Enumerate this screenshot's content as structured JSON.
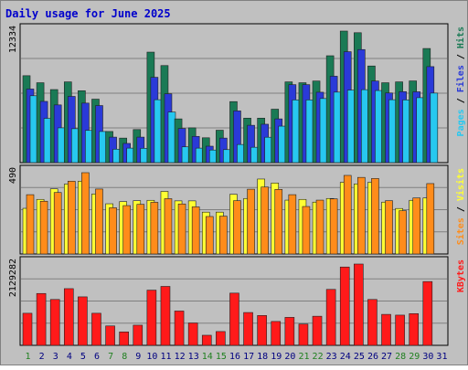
{
  "title": "Daily usage for June 2025",
  "colors": {
    "background": "#c0c0c0",
    "border": "#808080",
    "title": "#0000cc",
    "hits": "#1a7a55",
    "files": "#2a3ad8",
    "pages": "#27c8f0",
    "visits": "#ffff33",
    "sites": "#ff8c1a",
    "kbytes": "#ff1a1a",
    "day_weekday": "#000080",
    "day_weekend": "#208020"
  },
  "chart_data": [
    {
      "type": "bar",
      "panel": "hits-files-pages",
      "ymax_label": "12334",
      "legend": [
        {
          "name": "Pages",
          "color": "#27c8f0"
        },
        {
          "name": "Files",
          "color": "#2a3ad8"
        },
        {
          "name": "Hits",
          "color": "#1a7a55"
        }
      ],
      "categories": [
        "1",
        "2",
        "3",
        "4",
        "5",
        "6",
        "7",
        "8",
        "9",
        "10",
        "11",
        "12",
        "13",
        "14",
        "15",
        "16",
        "17",
        "18",
        "19",
        "20",
        "21",
        "22",
        "23",
        "24",
        "25",
        "26",
        "27",
        "28",
        "29",
        "30",
        "31"
      ],
      "series": [
        {
          "name": "Hits",
          "values": [
            8150,
            7490,
            6850,
            7570,
            6740,
            5950,
            2920,
            2300,
            3100,
            10360,
            9100,
            4100,
            3260,
            2330,
            3040,
            5720,
            4170,
            4170,
            5010,
            7570,
            7490,
            7650,
            10020,
            12334,
            12180,
            9060,
            7490,
            7570,
            7660,
            10700,
            null
          ]
        },
        {
          "name": "Files",
          "values": [
            6900,
            5740,
            5410,
            6210,
            5580,
            5350,
            2390,
            1800,
            2390,
            8000,
            6450,
            3200,
            2460,
            1540,
            2300,
            4850,
            3500,
            3600,
            4100,
            7310,
            7310,
            6600,
            8100,
            10400,
            10600,
            7650,
            6530,
            6650,
            6640,
            9000,
            null
          ]
        },
        {
          "name": "Pages",
          "values": [
            6270,
            4150,
            3260,
            3180,
            3020,
            2920,
            1260,
            1360,
            1340,
            5900,
            4740,
            1480,
            1360,
            1180,
            1220,
            1700,
            1440,
            2380,
            3420,
            5880,
            5880,
            6010,
            6610,
            6800,
            6840,
            6760,
            5900,
            5880,
            6090,
            6520,
            null
          ]
        }
      ]
    },
    {
      "type": "bar",
      "panel": "visits-sites",
      "ymax_label": "490",
      "legend": [
        {
          "name": "Sites",
          "color": "#ff8c1a"
        },
        {
          "name": "Visits",
          "color": "#ffff33"
        }
      ],
      "categories": [
        "1",
        "2",
        "3",
        "4",
        "5",
        "6",
        "7",
        "8",
        "9",
        "10",
        "11",
        "12",
        "13",
        "14",
        "15",
        "16",
        "17",
        "18",
        "19",
        "20",
        "21",
        "22",
        "23",
        "24",
        "25",
        "26",
        "27",
        "28",
        "29",
        "30",
        "31"
      ],
      "series": [
        {
          "name": "Visits",
          "values": [
            251,
            300,
            358,
            384,
            400,
            330,
            276,
            288,
            293,
            295,
            344,
            292,
            292,
            230,
            230,
            328,
            305,
            412,
            390,
            296,
            300,
            285,
            305,
            394,
            385,
            394,
            285,
            250,
            295,
            308,
            null
          ]
        },
        {
          "name": "Sites",
          "values": [
            326,
            290,
            338,
            400,
            447,
            357,
            254,
            266,
            273,
            284,
            304,
            275,
            259,
            206,
            208,
            293,
            356,
            368,
            355,
            326,
            261,
            296,
            303,
            432,
            421,
            415,
            293,
            238,
            308,
            387,
            null
          ]
        }
      ]
    },
    {
      "type": "bar",
      "panel": "kbytes",
      "ymax_label": "2129282",
      "legend": [
        {
          "name": "KBytes",
          "color": "#ff1a1a"
        }
      ],
      "categories": [
        "1",
        "2",
        "3",
        "4",
        "5",
        "6",
        "7",
        "8",
        "9",
        "10",
        "11",
        "12",
        "13",
        "14",
        "15",
        "16",
        "17",
        "18",
        "19",
        "20",
        "21",
        "22",
        "23",
        "24",
        "25",
        "26",
        "27",
        "28",
        "29",
        "30",
        "31"
      ],
      "series": [
        {
          "name": "KBytes",
          "values": [
            860000,
            1390000,
            1230000,
            1520000,
            1300000,
            860000,
            520000,
            360000,
            540000,
            1480000,
            1580000,
            920000,
            600000,
            270000,
            370000,
            1400000,
            880000,
            800000,
            640000,
            750000,
            570000,
            780000,
            1500000,
            2100000,
            2180000,
            1230000,
            830000,
            810000,
            850000,
            1710000,
            null
          ]
        }
      ]
    }
  ],
  "day_labels": [
    {
      "text": "1",
      "weekend": true
    },
    {
      "text": "2",
      "weekend": false
    },
    {
      "text": "3",
      "weekend": false
    },
    {
      "text": "4",
      "weekend": false
    },
    {
      "text": "5",
      "weekend": false
    },
    {
      "text": "6",
      "weekend": false
    },
    {
      "text": "7",
      "weekend": true
    },
    {
      "text": "8",
      "weekend": true
    },
    {
      "text": "9",
      "weekend": false
    },
    {
      "text": "10",
      "weekend": false
    },
    {
      "text": "11",
      "weekend": false
    },
    {
      "text": "12",
      "weekend": false
    },
    {
      "text": "13",
      "weekend": false
    },
    {
      "text": "14",
      "weekend": true
    },
    {
      "text": "15",
      "weekend": true
    },
    {
      "text": "16",
      "weekend": false
    },
    {
      "text": "17",
      "weekend": false
    },
    {
      "text": "18",
      "weekend": false
    },
    {
      "text": "19",
      "weekend": false
    },
    {
      "text": "20",
      "weekend": false
    },
    {
      "text": "21",
      "weekend": true
    },
    {
      "text": "22",
      "weekend": true
    },
    {
      "text": "23",
      "weekend": false
    },
    {
      "text": "24",
      "weekend": false
    },
    {
      "text": "25",
      "weekend": false
    },
    {
      "text": "26",
      "weekend": false
    },
    {
      "text": "27",
      "weekend": false
    },
    {
      "text": "28",
      "weekend": true
    },
    {
      "text": "29",
      "weekend": true
    },
    {
      "text": "30",
      "weekend": false
    },
    {
      "text": "31",
      "weekend": false
    }
  ]
}
